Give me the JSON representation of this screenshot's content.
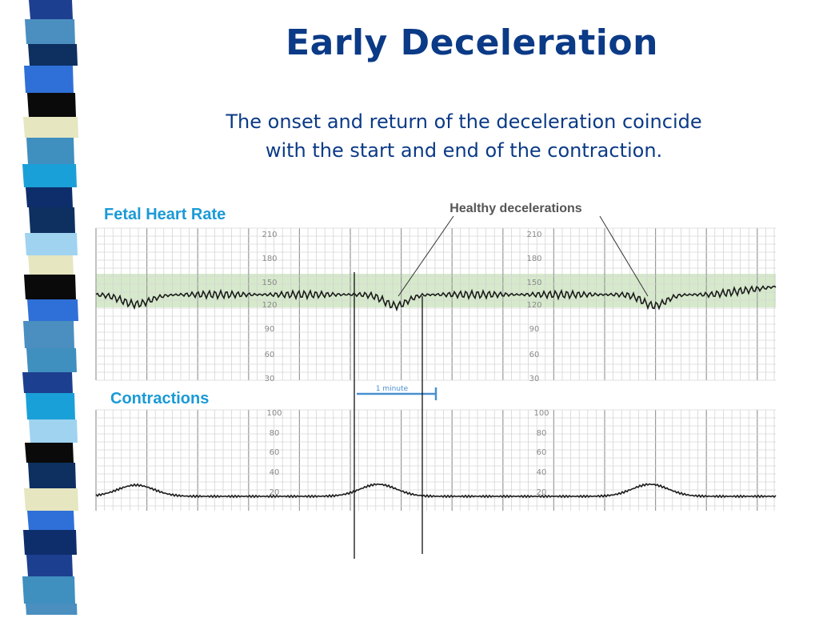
{
  "title": "Early Deceleration",
  "subtitle": [
    "The onset and return of the deceleration coincide",
    "with the start and end of the contraction."
  ],
  "fhr_label": "Fetal Heart Rate",
  "contractions_label": "Contractions",
  "annotation": "Healthy decelerations",
  "scale_label": "1 minute",
  "fhr_ticks": [
    "210",
    "180",
    "150",
    "120",
    "90",
    "60",
    "30"
  ],
  "toco_ticks": [
    "100",
    "80",
    "60",
    "40",
    "20"
  ],
  "colors": {
    "title": "#0b3a86",
    "label": "#1b9ad6",
    "normal_band": "#cfe6c2",
    "stripe": [
      "#1d3f8f",
      "#4a8fc0",
      "#0d3060",
      "#2f6fd8",
      "#0a0a0a",
      "#e6e6c0",
      "#3f8fbf",
      "#1aa0d8",
      "#0e2d6b",
      "#9fd3f0"
    ]
  }
}
